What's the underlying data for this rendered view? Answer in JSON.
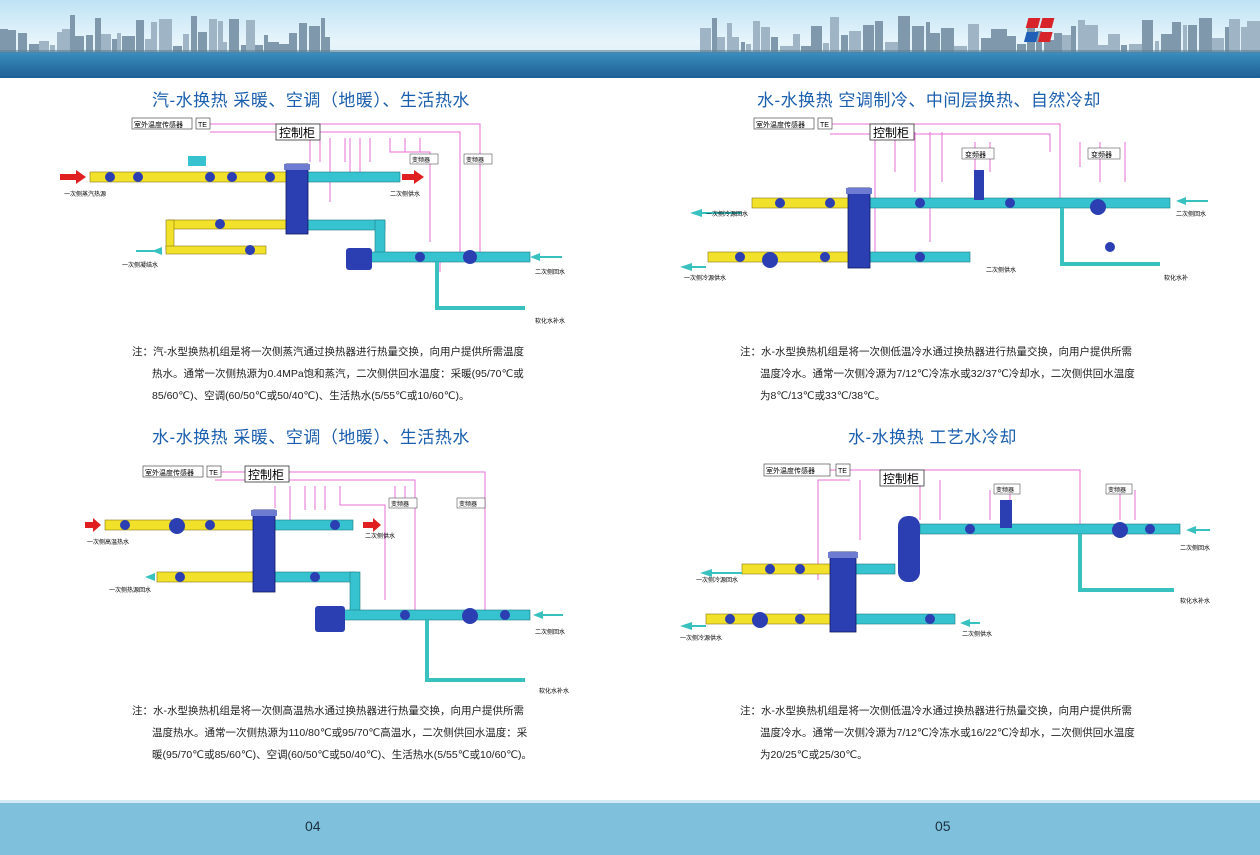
{
  "colors": {
    "yellow": "#f2e12b",
    "cyan": "#36c3cf",
    "blue": "#2b3fb3",
    "magenta": "#e86fd8",
    "red": "#e02020",
    "teal": "#39c1c0"
  },
  "pages": {
    "left": "04",
    "right": "05"
  },
  "sections": [
    {
      "title": "汽-水换热   采暖、空调（地暖）、生活热水",
      "labels": {
        "sensor": "室外温度传感器",
        "te": "TE",
        "control": "控制柜",
        "vfd1": "变频器",
        "vfd2": "变频器",
        "in_primary": "一次侧蒸汽热源",
        "out_secondary": "二次侧供水",
        "out_condensate": "一次侧凝结水",
        "ret_secondary": "二次侧回水",
        "makeup": "软化水补水"
      },
      "note": [
        "注：汽-水型换热机组是将一次侧蒸汽通过换热器进行热量交换，向用户提供所需温度",
        "热水。通常一次侧热源为0.4MPa饱和蒸汽，二次侧供回水温度：采暖(95/70℃或",
        "85/60℃)、空调(60/50℃或50/40℃)、生活热水(5/55℃或10/60℃)。"
      ]
    },
    {
      "title": "水-水换热   空调制冷、中间层换热、自然冷却",
      "labels": {
        "sensor": "室外温度传感器",
        "te": "TE",
        "control": "控制柜",
        "vfd1": "变频器",
        "vfd2": "变频器",
        "out_primary_ret": "一次侧冷源回水",
        "in_primary_sup": "一次侧冷源供水",
        "out_secondary": "二次侧供水",
        "ret_secondary": "二次侧回水",
        "makeup": "软化水补"
      },
      "note": [
        "注：水-水型换热机组是将一次侧低温冷水通过换热器进行热量交换，向用户提供所需",
        "温度冷水。通常一次侧冷源为7/12℃冷冻水或32/37℃冷却水，二次侧供回水温度",
        "为8℃/13℃或33℃/38℃。"
      ]
    },
    {
      "title": "水-水换热   采暖、空调（地暖）、生活热水",
      "labels": {
        "sensor": "室外温度传感器",
        "te": "TE",
        "control": "控制柜",
        "vfd1": "变频器",
        "vfd2": "变频器",
        "in_primary": "一次侧高温热水",
        "out_secondary": "二次侧供水",
        "ret_primary": "一次侧热源回水",
        "ret_secondary": "二次侧回水",
        "makeup": "软化水补水"
      },
      "note": [
        "注：水-水型换热机组是将一次侧高温热水通过换热器进行热量交换，向用户提供所需",
        "温度热水。通常一次侧热源为110/80℃或95/70℃高温水，二次侧供回水温度：采",
        "暖(95/70℃或85/60℃)、空调(60/50℃或50/40℃)、生活热水(5/55℃或10/60℃)。"
      ]
    },
    {
      "title": "水-水换热   工艺水冷却",
      "labels": {
        "sensor": "室外温度传感器",
        "te": "TE",
        "control": "控制柜",
        "vfd1": "变频器",
        "vfd2": "变频器",
        "out_primary_ret": "一次侧冷源回水",
        "in_primary_sup": "一次侧冷源供水",
        "out_secondary": "二次侧供水",
        "ret_secondary": "二次侧回水",
        "makeup": "软化水补水"
      },
      "note": [
        "注：水-水型换热机组是将一次侧低温冷水通过换热器进行热量交换，向用户提供所需",
        "温度冷水。通常一次侧冷源为7/12℃冷冻水或16/22℃冷却水，二次侧供回水温度",
        "为20/25℃或25/30℃。"
      ]
    }
  ]
}
